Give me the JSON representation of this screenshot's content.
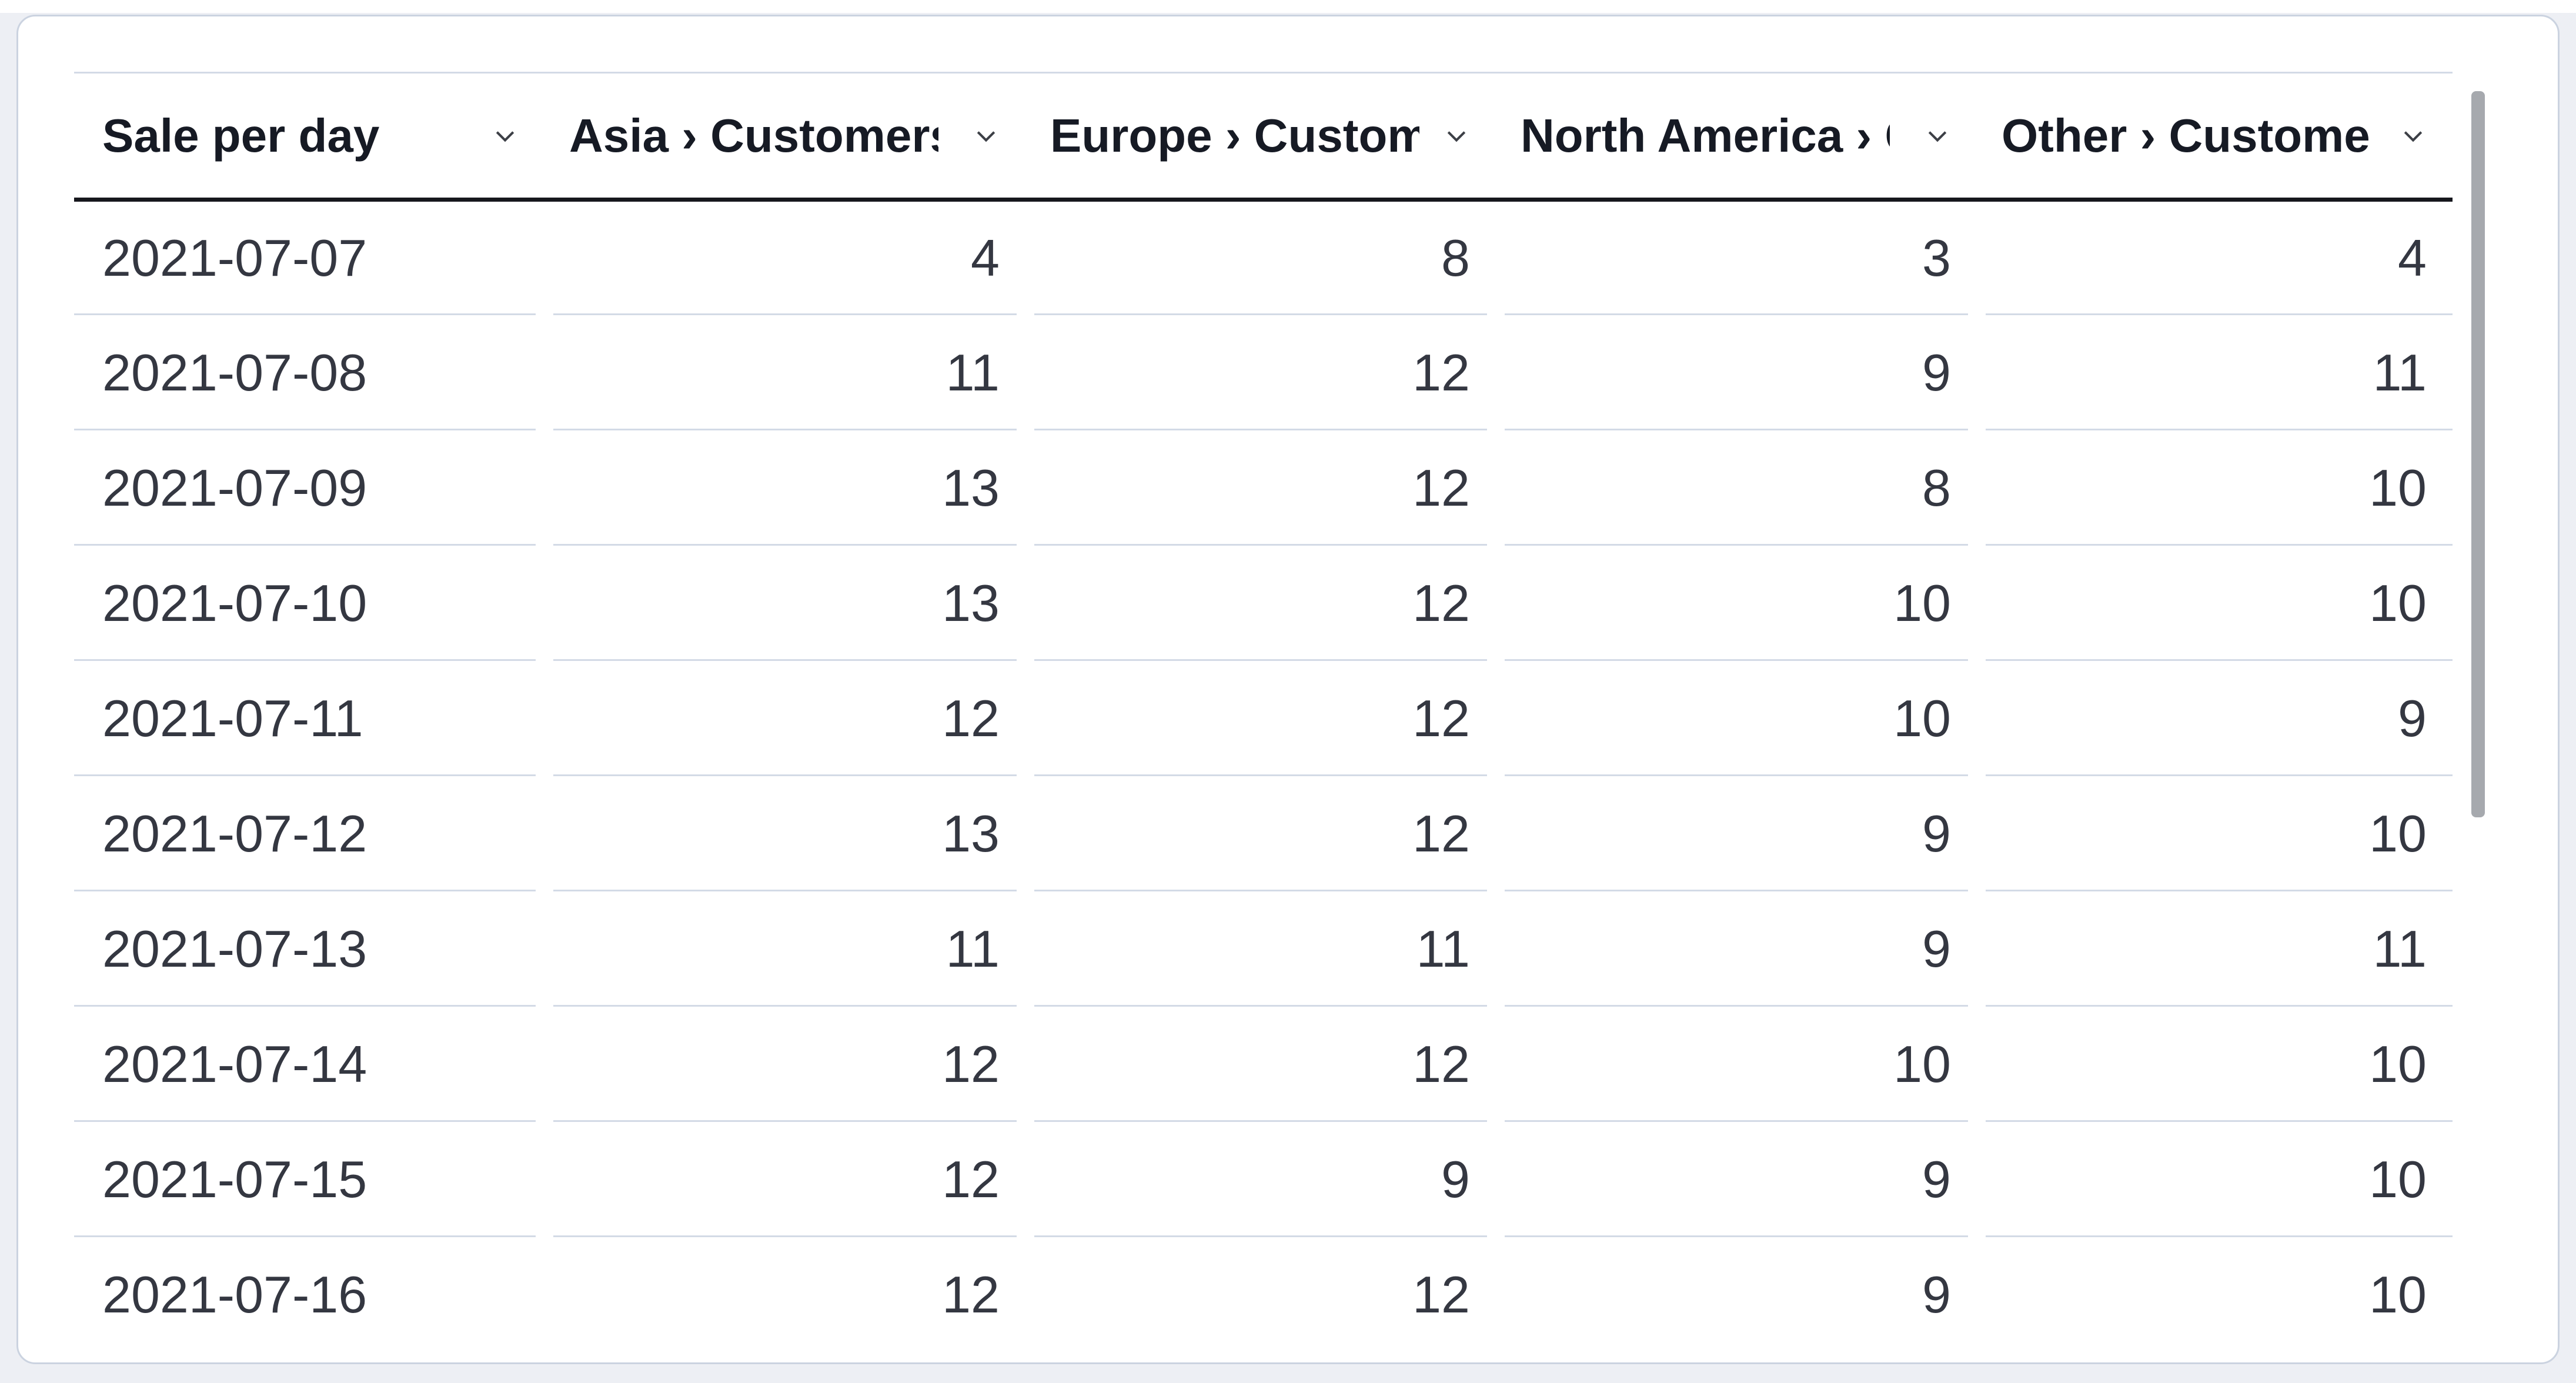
{
  "table": {
    "name": "Sale per day datatable",
    "columns": [
      {
        "id": "sale_per_day",
        "label": "Sale per day",
        "align": "left"
      },
      {
        "id": "asia",
        "label": "Asia › Customers",
        "align": "right"
      },
      {
        "id": "europe",
        "label": "Europe › Customers",
        "align": "right"
      },
      {
        "id": "north_america",
        "label": "North America › Customers",
        "align": "right"
      },
      {
        "id": "other",
        "label": "Other › Customers",
        "align": "right"
      }
    ],
    "rows": [
      [
        "2021-07-07",
        "4",
        "8",
        "3",
        "4"
      ],
      [
        "2021-07-08",
        "11",
        "12",
        "9",
        "11"
      ],
      [
        "2021-07-09",
        "13",
        "12",
        "8",
        "10"
      ],
      [
        "2021-07-10",
        "13",
        "12",
        "10",
        "10"
      ],
      [
        "2021-07-11",
        "12",
        "12",
        "10",
        "9"
      ],
      [
        "2021-07-12",
        "13",
        "12",
        "9",
        "10"
      ],
      [
        "2021-07-13",
        "11",
        "11",
        "9",
        "11"
      ],
      [
        "2021-07-14",
        "12",
        "12",
        "10",
        "10"
      ],
      [
        "2021-07-15",
        "12",
        "9",
        "9",
        "10"
      ],
      [
        "2021-07-16",
        "12",
        "12",
        "9",
        "10"
      ]
    ]
  },
  "icons": {
    "column_menu": "chevron-down-icon"
  },
  "scrollbar": {
    "orientation": "vertical"
  },
  "colors": {
    "page_background": "#edeff4",
    "card_background": "#ffffff",
    "card_border": "#cbd3e0",
    "header_text": "#161a24",
    "body_text": "#343741",
    "header_underline": "#16171d",
    "row_divider": "#d3dae6",
    "scrollbar_thumb": "#a6a9ae",
    "chevron": "#3c3f46"
  }
}
